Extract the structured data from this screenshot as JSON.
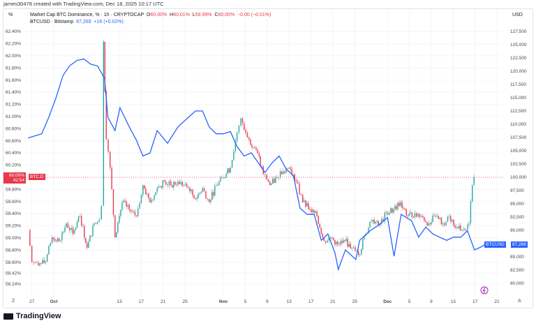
{
  "credit": "james30478 created with TradingView.com, Dec 18, 2025 10:17 UTC",
  "units": {
    "left": "%",
    "right": "USD"
  },
  "legend": {
    "dominance": {
      "title": "Market Cap BTC Dominance, % · 1h · CRYPTOCAP",
      "o_label": "O",
      "o": "60.00%",
      "h_label": "H",
      "h": "60.01%",
      "l_label": "L",
      "l": "59.99%",
      "c_label": "C",
      "c": "60.00%",
      "change": "−0.00 (−0.01%)"
    },
    "btc": {
      "title": "BTCUSD · Bitstamp",
      "price": "87,269",
      "change": "+16 (+0.02%)"
    }
  },
  "badges": {
    "dom_value": "60.00%",
    "dom_timer": "42:54",
    "dom_symbol": "BTC.D",
    "btc_symbol": "BTCUSD",
    "btc_value": "87,269"
  },
  "footer": {
    "logo": "TradingView",
    "bolt_icon": "lightning-icon",
    "axis_mode": "A",
    "zoom_icon": "Z"
  },
  "colors": {
    "btc": "#2962ff",
    "up": "#26a69a",
    "down": "#e8394b",
    "grid": "#f0f3fa"
  },
  "chart_data": {
    "type": "line",
    "x_unit": "days since Oct 1, 2025",
    "x_ticks": [
      {
        "d": -4,
        "label": "27"
      },
      {
        "d": 0,
        "label": "Oct"
      },
      {
        "d": 12,
        "label": "13"
      },
      {
        "d": 16,
        "label": "17"
      },
      {
        "d": 20,
        "label": "21"
      },
      {
        "d": 24,
        "label": "25"
      },
      {
        "d": 31,
        "label": "Nov"
      },
      {
        "d": 35,
        "label": "5"
      },
      {
        "d": 39,
        "label": "9"
      },
      {
        "d": 43,
        "label": "13"
      },
      {
        "d": 47,
        "label": "17"
      },
      {
        "d": 51,
        "label": "21"
      },
      {
        "d": 55,
        "label": "25"
      },
      {
        "d": 61,
        "label": "Dec"
      },
      {
        "d": 65,
        "label": "5"
      },
      {
        "d": 69,
        "label": "9"
      },
      {
        "d": 73,
        "label": "13"
      },
      {
        "d": 77,
        "label": "17"
      },
      {
        "d": 81,
        "label": "21"
      }
    ],
    "left_axis": {
      "label": "%",
      "ticks": [
        "62.40%",
        "62.20%",
        "62.00%",
        "61.80%",
        "61.60%",
        "61.40%",
        "61.20%",
        "61.00%",
        "60.80%",
        "60.60%",
        "60.40%",
        "60.20%",
        "59.80%",
        "59.60%",
        "59.40%",
        "59.20%",
        "59.00%",
        "58.80%",
        "58.60%",
        "58.42%",
        "58.24%"
      ]
    },
    "right_axis": {
      "label": "USD",
      "ticks": [
        "127,500",
        "125,000",
        "122,500",
        "120,000",
        "117,500",
        "115,000",
        "112,500",
        "110,000",
        "107,500",
        "105,000",
        "102,500",
        "100,000",
        "97,500",
        "95,000",
        "92,500",
        "90,000",
        "85,000",
        "82,500",
        "80,000"
      ]
    },
    "series": [
      {
        "name": "BTCUSD · Bitstamp",
        "axis": "right",
        "style": "line",
        "x": [
          -4.7,
          -2.2,
          -0.9,
          0.4,
          1.7,
          2.9,
          4.2,
          5.5,
          6.8,
          8.0,
          9.3,
          9.9,
          11.2,
          12.1,
          13.8,
          15.1,
          16.3,
          17.6,
          18.9,
          20.8,
          22.7,
          24.6,
          25.9,
          27.2,
          28.4,
          29.7,
          31,
          32.3,
          33.5,
          34.8,
          36.1,
          37.4,
          38.6,
          39.9,
          41.2,
          42.5,
          43.8,
          45.0,
          46.3,
          47.6,
          48.9,
          50.1,
          51.4,
          52.0,
          53.3,
          55.2,
          55.9,
          57.8,
          59.7,
          61.0,
          62.2,
          63.5,
          65.4,
          66.7,
          68.0,
          69.3,
          70.5,
          71.8,
          73.1,
          74.4,
          75.6,
          76.9,
          78.2,
          78.7
        ],
        "y": [
          107400,
          108200,
          111300,
          114900,
          119200,
          121000,
          122000,
          122300,
          121300,
          121000,
          118600,
          111300,
          108800,
          113100,
          109500,
          107000,
          104000,
          104600,
          108800,
          106400,
          109500,
          111300,
          112500,
          112500,
          109500,
          108200,
          108200,
          108600,
          105800,
          104000,
          104600,
          102700,
          100900,
          102700,
          104000,
          101500,
          100300,
          94200,
          93000,
          93000,
          88100,
          89300,
          85700,
          82600,
          86300,
          84500,
          88100,
          89900,
          91200,
          92400,
          85100,
          93000,
          91800,
          88700,
          90600,
          89300,
          88700,
          88100,
          88700,
          88700,
          89900,
          86300,
          86900,
          87269
        ]
      },
      {
        "name": "Market Cap BTC Dominance",
        "axis": "left",
        "style": "candles",
        "x": [
          -4.7,
          -4.0,
          -2.8,
          -1.5,
          -0.3,
          1.0,
          2.3,
          3.5,
          4.8,
          6.1,
          7.4,
          8.3,
          8.7,
          9.1,
          9.6,
          10.3,
          11.2,
          12.5,
          13.8,
          15.1,
          16.3,
          17.6,
          18.9,
          20.2,
          21.4,
          22.7,
          24.6,
          25.9,
          27.2,
          28.4,
          29.7,
          31.0,
          32.3,
          33.5,
          34.2,
          35.7,
          37.0,
          38.3,
          39.5,
          40.8,
          41.4,
          43.0,
          44.3,
          45.5,
          46.8,
          48.1,
          49.4,
          50.6,
          51.9,
          53.2,
          54.5,
          55.7,
          57.0,
          58.3,
          59.6,
          60.8,
          62.1,
          63.4,
          64.7,
          66.0,
          67.2,
          68.5,
          69.8,
          71.1,
          72.3,
          73.6,
          74.6,
          75.9,
          76.5,
          76.8
        ],
        "y": [
          59.13,
          58.61,
          58.55,
          58.61,
          59.01,
          58.95,
          59.24,
          59.07,
          59.36,
          58.84,
          59.24,
          59.3,
          59.53,
          62.23,
          60.62,
          60.16,
          59.01,
          59.59,
          59.47,
          59.36,
          59.87,
          59.59,
          59.82,
          59.93,
          59.87,
          59.93,
          59.82,
          59.64,
          59.82,
          59.59,
          59.87,
          59.99,
          60.16,
          60.74,
          60.97,
          60.62,
          60.45,
          60.05,
          59.87,
          59.99,
          60.1,
          60.16,
          59.93,
          59.59,
          59.47,
          59.36,
          58.95,
          59.01,
          58.9,
          58.95,
          58.84,
          58.72,
          59.07,
          59.3,
          59.24,
          59.41,
          59.47,
          59.59,
          59.36,
          59.41,
          59.36,
          59.24,
          59.36,
          59.24,
          59.36,
          59.18,
          59.13,
          59.24,
          59.87,
          60.0
        ]
      }
    ]
  }
}
